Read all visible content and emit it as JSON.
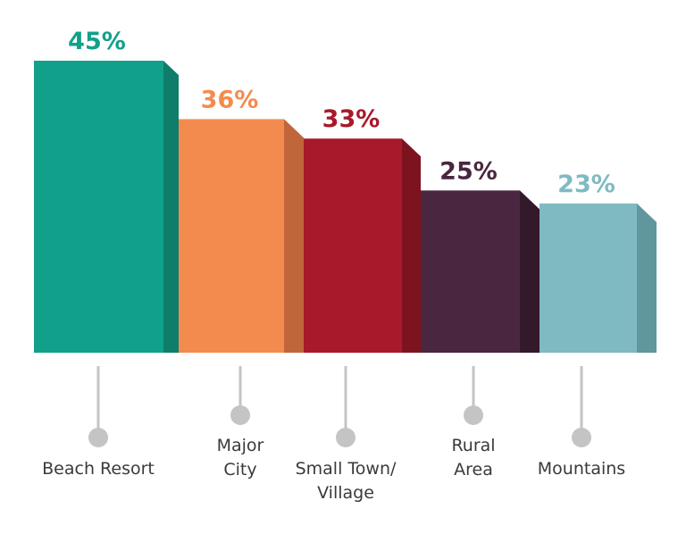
{
  "chart_data": {
    "type": "bar",
    "style": "3d-columns with pin labels",
    "categories": [
      [
        "Beach Resort"
      ],
      [
        "Major",
        "City"
      ],
      [
        "Small Town/",
        "Village"
      ],
      [
        "Rural",
        "Area"
      ],
      [
        "Mountains"
      ]
    ],
    "values": [
      45,
      36,
      33,
      25,
      23
    ],
    "value_labels": [
      "45%",
      "36%",
      "33%",
      "25%",
      "23%"
    ],
    "colors": [
      "#11a08a",
      "#f48b4e",
      "#a8192b",
      "#4a2640",
      "#7fbac2"
    ],
    "side_colors": [
      "#0e7d6b",
      "#c0663a",
      "#7e1320",
      "#321a2b",
      "#5f979d"
    ],
    "pin_color": "#c4c4c4",
    "title": "",
    "xlabel": "",
    "ylabel": "",
    "ylim": [
      0,
      45
    ],
    "grid": false,
    "legend": "none"
  }
}
